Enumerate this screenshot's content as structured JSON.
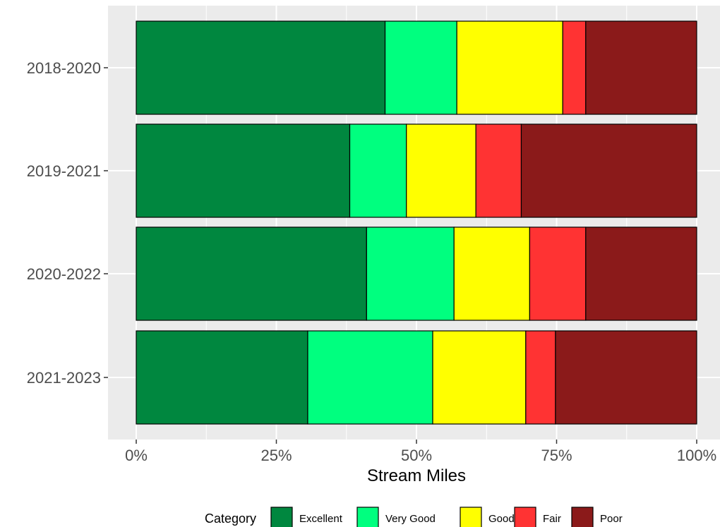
{
  "chart_data": {
    "type": "bar",
    "orientation": "horizontal",
    "stacked": true,
    "percent": true,
    "categories": [
      "2018-2020",
      "2019-2021",
      "2020-2022",
      "2021-2023"
    ],
    "series": [
      {
        "name": "Excellent",
        "color": "#00873f",
        "values": [
          44.4,
          38.1,
          41.1,
          30.6
        ]
      },
      {
        "name": "Very Good",
        "color": "#00ff7f",
        "values": [
          12.8,
          10.1,
          15.6,
          22.3
        ]
      },
      {
        "name": "Good",
        "color": "#ffff00",
        "values": [
          18.9,
          12.4,
          13.5,
          16.6
        ]
      },
      {
        "name": "Fair",
        "color": "#ff3333",
        "values": [
          4.1,
          8.1,
          10.0,
          5.3
        ]
      },
      {
        "name": "Poor",
        "color": "#8b1a1a",
        "values": [
          19.8,
          31.3,
          19.8,
          25.2
        ]
      }
    ],
    "xlabel": "Stream Miles",
    "ylabel": "",
    "xlim": [
      0,
      100
    ],
    "xticks": [
      0,
      25,
      50,
      75,
      100
    ],
    "xtick_labels": [
      "0%",
      "25%",
      "50%",
      "75%",
      "100%"
    ],
    "grid": true,
    "legend": {
      "title": "Category",
      "position": "bottom"
    }
  }
}
